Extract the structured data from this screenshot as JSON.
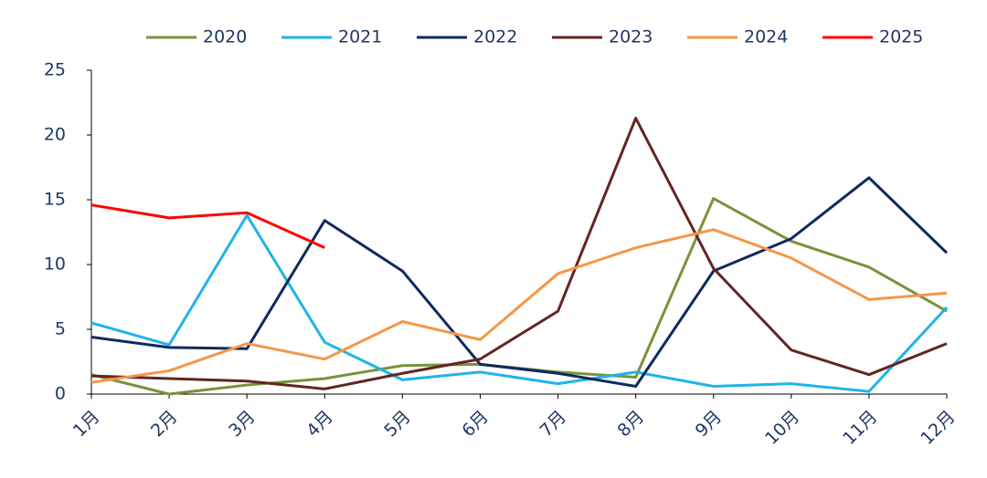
{
  "chart_data": {
    "type": "line",
    "categories": [
      "1月",
      "2月",
      "3月",
      "4月",
      "5月",
      "6月",
      "7月",
      "8月",
      "9月",
      "10月",
      "11月",
      "12月"
    ],
    "series": [
      {
        "name": "2020",
        "color": "#77933c",
        "values": [
          1.5,
          0.0,
          0.7,
          1.2,
          2.2,
          2.3,
          1.7,
          1.3,
          15.1,
          11.8,
          9.8,
          6.4
        ]
      },
      {
        "name": "2021",
        "color": "#1fb4e8",
        "values": [
          5.5,
          3.8,
          13.8,
          4.0,
          1.1,
          1.7,
          0.8,
          1.7,
          0.6,
          0.8,
          0.2,
          6.7
        ]
      },
      {
        "name": "2022",
        "color": "#0f2a5e",
        "values": [
          4.4,
          3.6,
          3.5,
          13.4,
          9.5,
          2.3,
          1.6,
          0.6,
          9.5,
          12.0,
          16.7,
          10.9
        ]
      },
      {
        "name": "2023",
        "color": "#632523",
        "values": [
          1.4,
          1.2,
          1.0,
          0.4,
          1.6,
          2.7,
          6.4,
          21.3,
          9.7,
          3.4,
          1.5,
          3.9
        ]
      },
      {
        "name": "2024",
        "color": "#f79646",
        "values": [
          0.9,
          1.8,
          3.9,
          2.7,
          5.6,
          4.2,
          9.3,
          11.3,
          12.7,
          10.5,
          7.3,
          7.8
        ]
      },
      {
        "name": "2025",
        "color": "#ff0000",
        "values": [
          14.6,
          13.6,
          14.0,
          11.3,
          null,
          null,
          null,
          null,
          null,
          null,
          null,
          null
        ]
      }
    ],
    "ylim": [
      0,
      25
    ],
    "yticks": [
      0,
      5,
      10,
      15,
      20,
      25
    ],
    "legend": "top"
  }
}
